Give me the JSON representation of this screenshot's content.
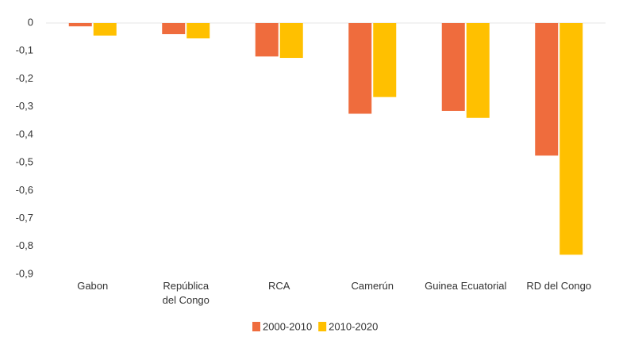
{
  "chart_data": {
    "type": "bar",
    "categories": [
      "Gabon",
      "República\ndel Congo",
      "RCA",
      "Camerún",
      "Guinea Ecuatorial",
      "RD del Congo"
    ],
    "series": [
      {
        "name": "2000-2010",
        "color": "#ef6c3d",
        "values": [
          -0.012,
          -0.04,
          -0.12,
          -0.325,
          -0.315,
          -0.475
        ]
      },
      {
        "name": "2010-2020",
        "color": "#ffc000",
        "values": [
          -0.045,
          -0.055,
          -0.125,
          -0.265,
          -0.34,
          -0.83
        ]
      }
    ],
    "ylim": [
      0,
      -0.9
    ],
    "yticks": [
      0,
      {
        "value": -0.1,
        "label": "-0,1"
      },
      {
        "value": -0.2,
        "label": "-0,2"
      },
      {
        "value": -0.3,
        "label": "-0,3"
      },
      {
        "value": -0.4,
        "label": "-0,4"
      },
      {
        "value": -0.5,
        "label": "-0,5"
      },
      {
        "value": -0.6,
        "label": "-0,6"
      },
      {
        "value": -0.7,
        "label": "-0,7"
      },
      {
        "value": -0.8,
        "label": "-0,8"
      },
      {
        "value": -0.9,
        "label": "-0,9"
      }
    ],
    "grid": false,
    "legend": "bottom"
  }
}
